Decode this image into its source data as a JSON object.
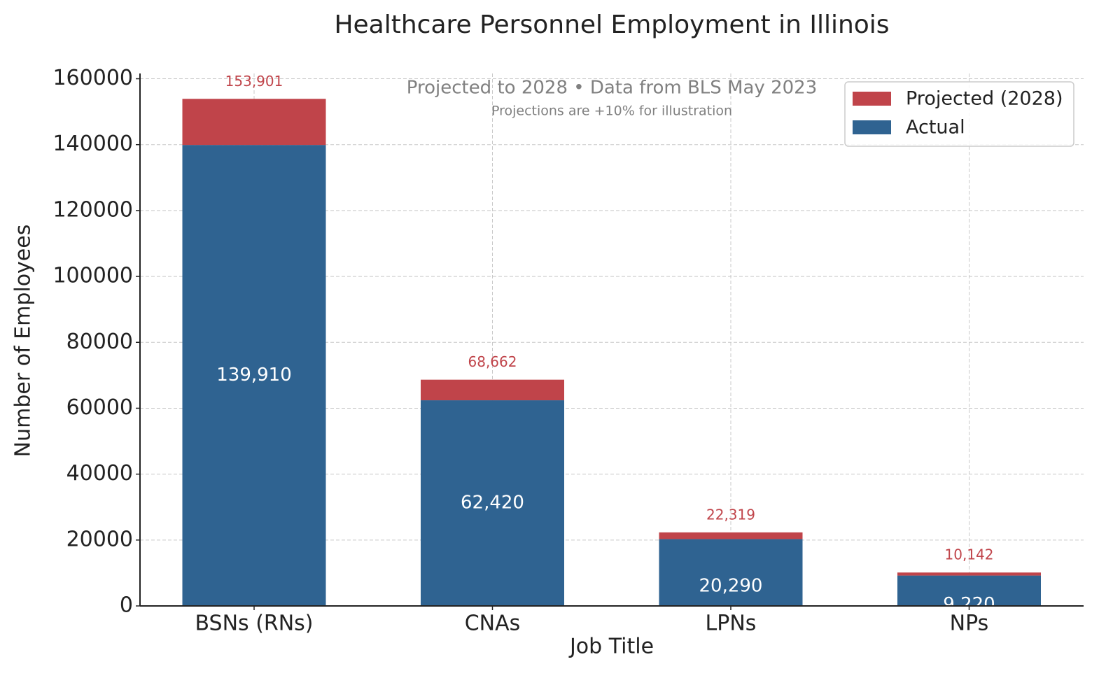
{
  "chart_data": {
    "type": "stacked_bar",
    "title": "Healthcare Personnel Employment in Illinois",
    "subtitle": "Projected to 2028 • Data from BLS May 2023",
    "note": "Projections are +10% for illustration",
    "x_label": "Job Title",
    "y_label": "Number of Employees",
    "categories": [
      "BSNs (RNs)",
      "CNAs",
      "LPNs",
      "NPs"
    ],
    "series": [
      {
        "name": "Actual",
        "color": "#2f6391",
        "values": [
          139910,
          62420,
          20290,
          9220
        ],
        "value_labels": [
          "139,910",
          "62,420",
          "20,290",
          "9,220"
        ]
      },
      {
        "name": "Projected (2028)",
        "color": "#c0444a",
        "values": [
          13991,
          6242,
          2029,
          922
        ]
      }
    ],
    "totals": [
      153901,
      68662,
      22319,
      10142
    ],
    "total_labels": [
      "153,901",
      "68,662",
      "22,319",
      "10,142"
    ],
    "ylim": [
      0,
      161600
    ],
    "yticks": [
      0,
      20000,
      40000,
      60000,
      80000,
      100000,
      120000,
      140000,
      160000
    ],
    "grid": true,
    "legend": "upper right"
  }
}
